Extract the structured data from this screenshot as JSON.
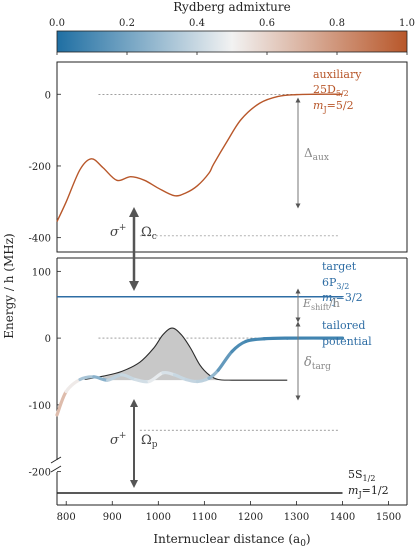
{
  "colorbar": {
    "title": "Rydberg admixture",
    "ticks": [
      "0.0",
      "0.2",
      "0.4",
      "0.6",
      "0.8",
      "1.0"
    ],
    "color_low": "#1f6fa3",
    "color_mid": "#f2f2f2",
    "color_high": "#b8572a"
  },
  "labels": {
    "y_axis": "Energy / h (MHz)",
    "x_axis": "Internuclear distance (a",
    "x_axis_sub": "0",
    "x_axis_close": ")",
    "aux_1": "auxiliary",
    "aux_2": "25D",
    "aux_2_sub": "5/2",
    "aux_3a": "m",
    "aux_3_sub": "J",
    "aux_3b": "=5/2",
    "delta_aux": "Δ",
    "delta_aux_sub": "aux",
    "sigma_c": "σ",
    "sigma_c_sup": "+",
    "omega_c": "Ω",
    "omega_c_sub": "c",
    "target_1": "target",
    "target_2": "6P",
    "target_2_sub": "3/2",
    "target_3a": "m",
    "target_3_sub": "J",
    "target_3b": "=3/2",
    "eshift_a": "E",
    "eshift_sub": "shift",
    "eshift_b": "/h",
    "tailored_1": "tailored",
    "tailored_2": "potential",
    "delta_targ": "δ",
    "delta_targ_sub": "targ",
    "sigma_p": "σ",
    "sigma_p_sup": "+",
    "omega_p": "Ω",
    "omega_p_sub": "p",
    "ground_1": "5S",
    "ground_1_sub": "1/2",
    "ground_2a": "m",
    "ground_2_sub": "J",
    "ground_2b": "=1/2"
  },
  "chart_data": {
    "type": "line",
    "x_label": "Internuclear distance (a0)",
    "y_label": "Energy / h (MHz)",
    "x_range": [
      780,
      1540
    ],
    "x_ticks": [
      800,
      900,
      1000,
      1100,
      1200,
      1300,
      1400,
      1500
    ],
    "top_panel": {
      "y_range": [
        -440,
        90
      ],
      "y_ticks": [
        0,
        -200,
        -400
      ],
      "auxiliary_potential": {
        "x": [
          780,
          800,
          830,
          855,
          880,
          910,
          940,
          970,
          1000,
          1035,
          1060,
          1085,
          1110,
          1120,
          1150,
          1180,
          1220,
          1260,
          1300,
          1340,
          1400
        ],
        "y": [
          -355,
          -300,
          -210,
          -180,
          -205,
          -240,
          -230,
          -240,
          -262,
          -283,
          -275,
          -255,
          -220,
          -195,
          -130,
          -70,
          -25,
          -6,
          -1,
          0,
          0
        ],
        "color": "#b8572a"
      },
      "reference_levels": [
        0,
        -395
      ]
    },
    "bottom_panel": {
      "y_range": [
        -250,
        120
      ],
      "y_ticks": [
        100,
        0,
        -100,
        -200
      ],
      "target_level": 62,
      "ground_level": -232,
      "reference_levels": [
        0,
        -60,
        -138
      ],
      "tailored_potential": {
        "x": [
          780,
          800,
          830,
          860,
          890,
          920,
          950,
          980,
          1010,
          1035,
          1060,
          1085,
          1110,
          1130,
          1160,
          1190,
          1230,
          1280,
          1400
        ],
        "y": [
          -115,
          -80,
          -62,
          -58,
          -63,
          -55,
          -62,
          -65,
          -52,
          -55,
          -62,
          -65,
          -60,
          -48,
          -20,
          -5,
          -1,
          0,
          0
        ],
        "admixture": [
          0.75,
          0.6,
          0.45,
          0.2,
          0.3,
          0.45,
          0.35,
          0.5,
          0.45,
          0.42,
          0.38,
          0.4,
          0.35,
          0.2,
          0.12,
          0.1,
          0.08,
          0.08,
          0.08
        ]
      },
      "target_dressed_curve": {
        "x": [
          840,
          880,
          920,
          960,
          990,
          1010,
          1030,
          1050,
          1070,
          1090,
          1110,
          1130,
          1160,
          1200,
          1280
        ],
        "y": [
          -62,
          -57,
          -50,
          -36,
          -15,
          5,
          15,
          5,
          -15,
          -40,
          -55,
          -62,
          -63,
          -63,
          -63
        ],
        "color": "#2b2b2b",
        "fill": "#c8c8c8"
      }
    }
  }
}
